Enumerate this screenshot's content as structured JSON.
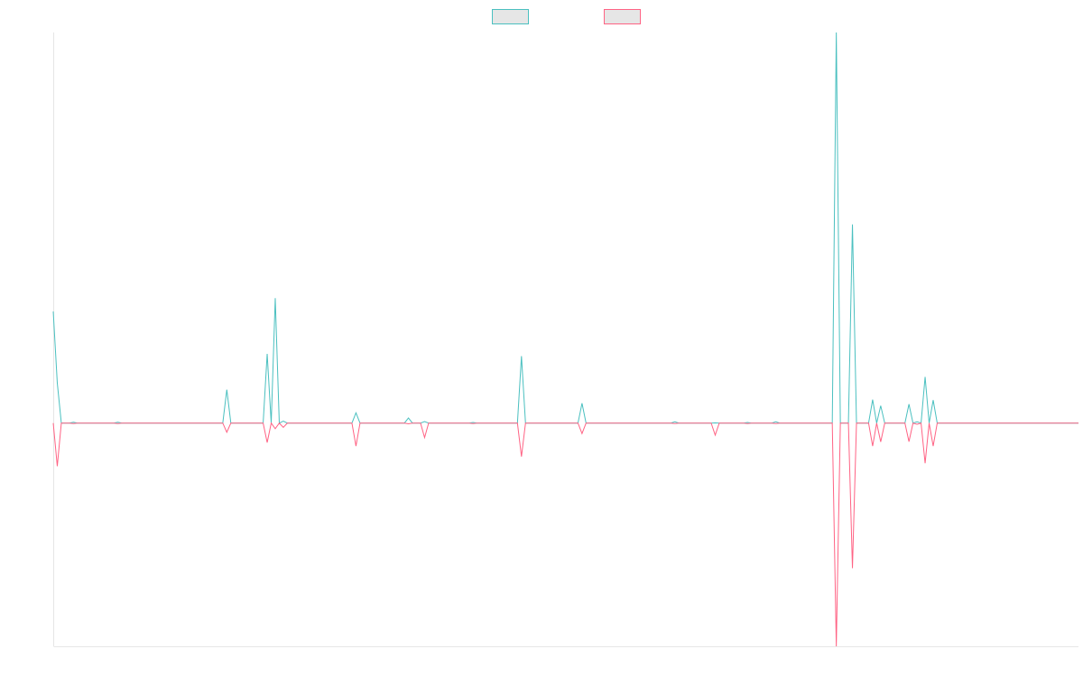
{
  "chart_data": {
    "type": "line",
    "title": "",
    "xlabel": "",
    "ylabel": "",
    "grid": false,
    "legend": "top-center",
    "n_points": 255,
    "ylim": [
      -100,
      140
    ],
    "series": [
      {
        "color": "#4bc0c0",
        "fill": "#e6e6e6",
        "points": [
          [
            0,
            50
          ],
          [
            1,
            18
          ],
          [
            2,
            0
          ],
          [
            5,
            0.4
          ],
          [
            6,
            0
          ],
          [
            15,
            0
          ],
          [
            16,
            0.4
          ],
          [
            17,
            0
          ],
          [
            42,
            0
          ],
          [
            43,
            15
          ],
          [
            44,
            0
          ],
          [
            52,
            0
          ],
          [
            53,
            31
          ],
          [
            54,
            0
          ],
          [
            55,
            56
          ],
          [
            56,
            0
          ],
          [
            57,
            0.9
          ],
          [
            58,
            0
          ],
          [
            74,
            0
          ],
          [
            75,
            4.6
          ],
          [
            76,
            0
          ],
          [
            87,
            0
          ],
          [
            88,
            2.3
          ],
          [
            89,
            0
          ],
          [
            91,
            0
          ],
          [
            92,
            0.7
          ],
          [
            93,
            0
          ],
          [
            103,
            0
          ],
          [
            104,
            0.3
          ],
          [
            105,
            0
          ],
          [
            115,
            0
          ],
          [
            116,
            30
          ],
          [
            117,
            0
          ],
          [
            130,
            0
          ],
          [
            131,
            8.9
          ],
          [
            132,
            0
          ],
          [
            153,
            0
          ],
          [
            154,
            0.6
          ],
          [
            155,
            0
          ],
          [
            163,
            0
          ],
          [
            164,
            0.1
          ],
          [
            165,
            0
          ],
          [
            171,
            0
          ],
          [
            172,
            0.3
          ],
          [
            173,
            0
          ],
          [
            178,
            0
          ],
          [
            179,
            0.6
          ],
          [
            180,
            0
          ],
          [
            193,
            0
          ],
          [
            194,
            175
          ],
          [
            195,
            0
          ],
          [
            197,
            0
          ],
          [
            198,
            89
          ],
          [
            199,
            0
          ],
          [
            202,
            0
          ],
          [
            203,
            10.5
          ],
          [
            204,
            0
          ],
          [
            205,
            7.8
          ],
          [
            206,
            0
          ],
          [
            211,
            0
          ],
          [
            212,
            8.5
          ],
          [
            213,
            0
          ],
          [
            214,
            0.6
          ],
          [
            215,
            0
          ],
          [
            216,
            20.7
          ],
          [
            217,
            0
          ],
          [
            218,
            10.3
          ],
          [
            219,
            0
          ],
          [
            254,
            0
          ]
        ]
      },
      {
        "color": "#ff6384",
        "fill": "#e6e6e6",
        "points": [
          [
            0,
            0
          ],
          [
            1,
            -19.3
          ],
          [
            2,
            0
          ],
          [
            5,
            -0.2
          ],
          [
            6,
            0
          ],
          [
            15,
            0
          ],
          [
            16,
            -0.2
          ],
          [
            17,
            0
          ],
          [
            42,
            0
          ],
          [
            43,
            -4.1
          ],
          [
            44,
            0
          ],
          [
            52,
            0
          ],
          [
            53,
            -8.7
          ],
          [
            54,
            0
          ],
          [
            55,
            -2.5
          ],
          [
            56,
            0
          ],
          [
            57,
            -1.9
          ],
          [
            58,
            0
          ],
          [
            74,
            0
          ],
          [
            75,
            -10.3
          ],
          [
            76,
            0
          ],
          [
            87,
            0
          ],
          [
            88,
            -0.3
          ],
          [
            89,
            0
          ],
          [
            91,
            0
          ],
          [
            92,
            -6.5
          ],
          [
            93,
            0
          ],
          [
            103,
            0
          ],
          [
            104,
            -0.2
          ],
          [
            105,
            0
          ],
          [
            115,
            0
          ],
          [
            116,
            -15
          ],
          [
            117,
            0
          ],
          [
            130,
            0
          ],
          [
            131,
            -4.7
          ],
          [
            132,
            0
          ],
          [
            153,
            0
          ],
          [
            154,
            -0.2
          ],
          [
            155,
            0
          ],
          [
            163,
            0
          ],
          [
            164,
            -5.4
          ],
          [
            165,
            0
          ],
          [
            171,
            0
          ],
          [
            172,
            -0.2
          ],
          [
            173,
            0
          ],
          [
            178,
            0
          ],
          [
            179,
            -0.2
          ],
          [
            180,
            0
          ],
          [
            193,
            0
          ],
          [
            194,
            -100
          ],
          [
            195,
            0
          ],
          [
            197,
            0
          ],
          [
            198,
            -65
          ],
          [
            199,
            0
          ],
          [
            202,
            0
          ],
          [
            203,
            -10.3
          ],
          [
            204,
            0
          ],
          [
            205,
            -8.4
          ],
          [
            206,
            0
          ],
          [
            211,
            0
          ],
          [
            212,
            -8.3
          ],
          [
            213,
            0
          ],
          [
            214,
            -0.5
          ],
          [
            215,
            0
          ],
          [
            216,
            -18
          ],
          [
            217,
            0
          ],
          [
            218,
            -10.3
          ],
          [
            219,
            0
          ],
          [
            254,
            0
          ]
        ]
      }
    ]
  }
}
